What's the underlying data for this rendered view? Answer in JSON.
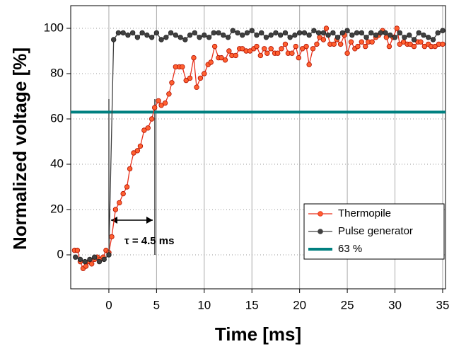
{
  "chart_data": {
    "type": "line",
    "x_label": "Time [ms]",
    "y_label": "Normalized voltage [%]",
    "xlim": [
      -4,
      35.3
    ],
    "ylim": [
      -15,
      110
    ],
    "xticks": [
      0,
      5,
      10,
      15,
      20,
      25,
      30,
      35
    ],
    "yticks": [
      0,
      20,
      40,
      60,
      80,
      100
    ],
    "grid": true,
    "legend": "lower right",
    "annotation": "τ = 4.5 ms",
    "threshold": {
      "name": "63 %",
      "value": 63,
      "color": "#008080"
    },
    "series": [
      {
        "name": "Thermopile",
        "color": "#e8301c",
        "marker_color": "#ff6030",
        "x": [
          -3.6,
          -3.3,
          -3.0,
          -2.7,
          -2.4,
          -2.1,
          -1.8,
          -1.5,
          -1.2,
          -0.9,
          -0.6,
          -0.3,
          0.0,
          0.3,
          0.7,
          1.1,
          1.5,
          1.9,
          2.2,
          2.6,
          3.0,
          3.3,
          3.7,
          4.1,
          4.5,
          4.8,
          5.2,
          5.5,
          5.9,
          6.3,
          6.6,
          7.0,
          7.4,
          7.7,
          8.1,
          8.5,
          8.9,
          9.2,
          9.6,
          10.0,
          10.4,
          10.7,
          11.1,
          11.5,
          11.8,
          12.2,
          12.6,
          12.9,
          13.3,
          13.7,
          14.0,
          14.4,
          14.8,
          15.2,
          15.5,
          15.9,
          16.3,
          16.6,
          17.0,
          17.4,
          17.7,
          18.1,
          18.5,
          18.8,
          19.2,
          19.6,
          19.9,
          20.3,
          20.7,
          21.0,
          21.4,
          21.8,
          22.1,
          22.5,
          22.8,
          23.2,
          23.6,
          23.9,
          24.3,
          24.7,
          25.0,
          25.4,
          25.8,
          26.1,
          26.5,
          26.9,
          27.2,
          27.6,
          28.0,
          28.3,
          28.7,
          29.1,
          29.4,
          29.8,
          30.2,
          30.5,
          30.9,
          31.3,
          31.6,
          32.0,
          32.4,
          32.7,
          33.1,
          33.5,
          33.8,
          34.2,
          34.6,
          35.0
        ],
        "values": [
          2,
          2,
          -3,
          -6,
          -5,
          -3,
          -4,
          -2,
          -1,
          -2,
          -1,
          2,
          1,
          8,
          20,
          23,
          27,
          30,
          38,
          45,
          46,
          48,
          55,
          56,
          60,
          65,
          68,
          66,
          67,
          71,
          76,
          83,
          83,
          83,
          77,
          78,
          87,
          74,
          78,
          80,
          84,
          85,
          92,
          87,
          87,
          86,
          90,
          88,
          88,
          91,
          91,
          90,
          90,
          91,
          92,
          88,
          91,
          89,
          91,
          89,
          89,
          91,
          93,
          89,
          89,
          92,
          87,
          91,
          92,
          84,
          91,
          93,
          96,
          95,
          100,
          93,
          93,
          95,
          93,
          97,
          89,
          94,
          91,
          92,
          94,
          92,
          94,
          94,
          96,
          97,
          99,
          96,
          92,
          96,
          100,
          93,
          94,
          93,
          93,
          92,
          94,
          94,
          92,
          93,
          92,
          92,
          93,
          93
        ]
      },
      {
        "name": "Pulse generator",
        "color": "#404040",
        "marker_color": "#404040",
        "x": [
          -3.5,
          -3,
          -2.5,
          -2,
          -1.5,
          -1,
          -0.5,
          0,
          0.5,
          1,
          1.5,
          2,
          2.5,
          3,
          3.5,
          4,
          4.5,
          5,
          5.5,
          6,
          6.5,
          7,
          7.5,
          8,
          8.5,
          9,
          9.5,
          10,
          10.5,
          11,
          11.5,
          12,
          12.5,
          13,
          13.5,
          14,
          14.5,
          15,
          15.5,
          16,
          16.5,
          17,
          17.5,
          18,
          18.5,
          19,
          19.5,
          20,
          20.5,
          21,
          21.5,
          22,
          22.5,
          23,
          23.5,
          24,
          24.5,
          25,
          25.5,
          26,
          26.5,
          27,
          27.5,
          28,
          28.5,
          29,
          29.5,
          30,
          30.5,
          31,
          31.5,
          32,
          32.5,
          33,
          33.5,
          34,
          34.5,
          35
        ],
        "values": [
          -1,
          -2,
          -3,
          -2,
          -1,
          -3,
          -2,
          0,
          95,
          98,
          98,
          97,
          98,
          96,
          98,
          97,
          96,
          98,
          95,
          96,
          98,
          97,
          96,
          95,
          97,
          98,
          96,
          97,
          96,
          98,
          98,
          97,
          96,
          99,
          98,
          97,
          98,
          99,
          97,
          98,
          96,
          97,
          98,
          97,
          98,
          96,
          97,
          98,
          98,
          97,
          99,
          98,
          98,
          97,
          98,
          96,
          98,
          99,
          97,
          98,
          98,
          96,
          98,
          97,
          98,
          98,
          97,
          96,
          98,
          96,
          97,
          95,
          98,
          97,
          96,
          95,
          98,
          99
        ]
      }
    ]
  }
}
